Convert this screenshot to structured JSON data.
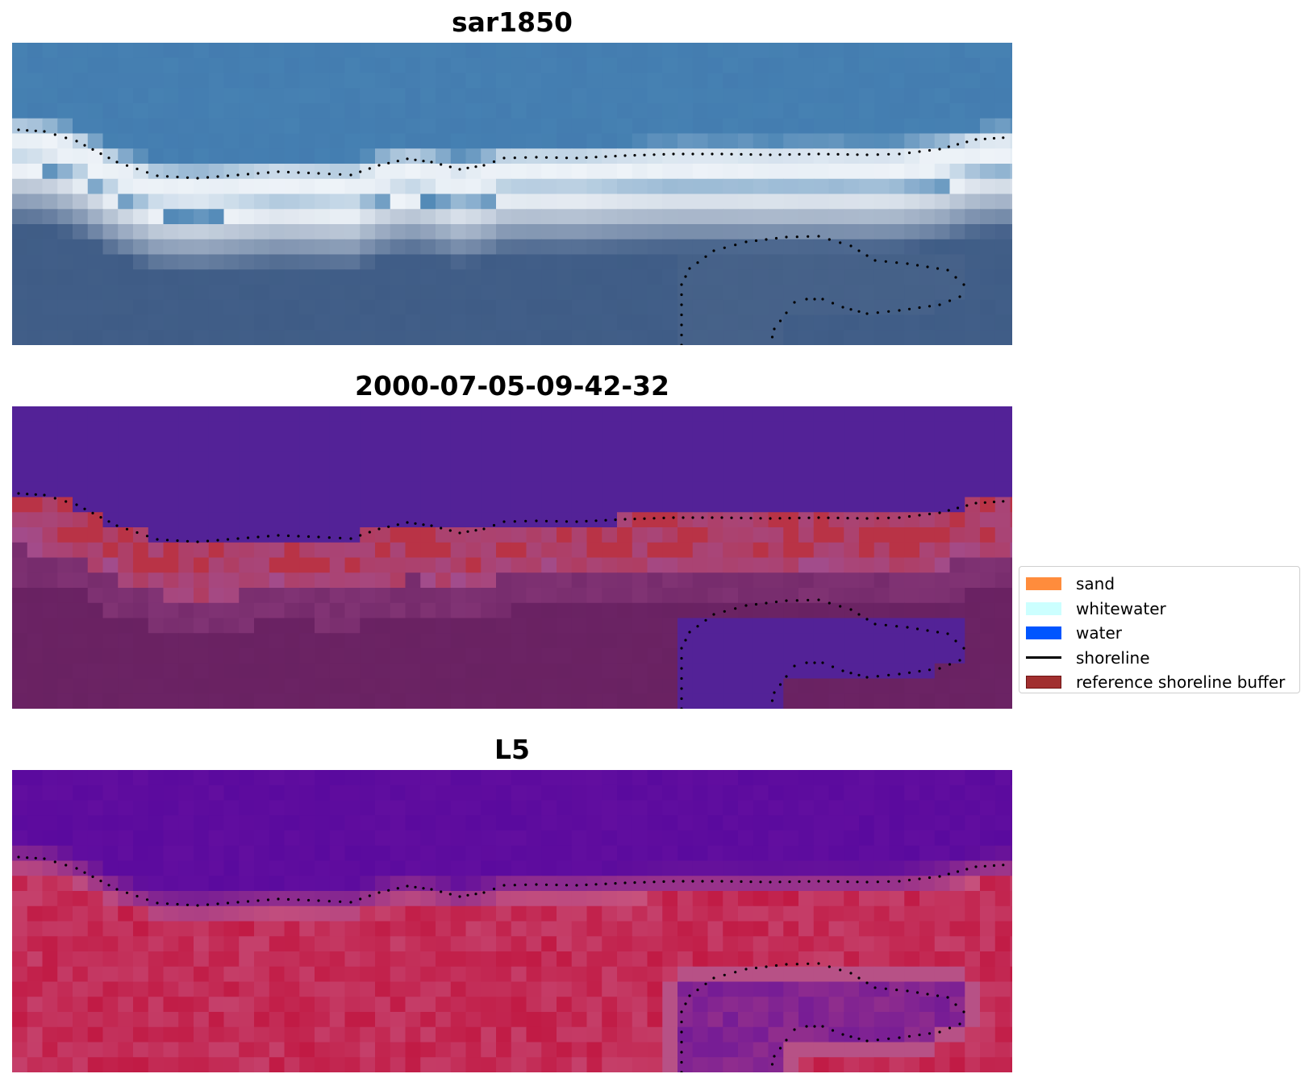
{
  "panels": [
    {
      "title": "sar1850",
      "image": "rgb-composite"
    },
    {
      "title": "2000-07-05-09-42-32",
      "image": "classified-overlay"
    },
    {
      "title": "L5",
      "image": "water-index"
    }
  ],
  "legend": {
    "items": [
      {
        "label": "sand",
        "color": "#ff8c3c",
        "kind": "patch"
      },
      {
        "label": "whitewater",
        "color": "#ccffff",
        "kind": "patch"
      },
      {
        "label": "water",
        "color": "#0055ff",
        "kind": "patch"
      },
      {
        "label": "shoreline",
        "color": "#000000",
        "kind": "line"
      },
      {
        "label": "reference shoreline buffer",
        "color": "#a12f2f",
        "kind": "patch"
      }
    ]
  },
  "colors": {
    "rgb_water_top": "#4681b2",
    "rgb_whitewater": "#eef3f8",
    "rgb_land": "#3f5c86",
    "class_water": "#532297",
    "class_land": "#6b2364",
    "class_buffer": "#b93346",
    "class_buffer_edge": "#a24c8c",
    "index_water": "#5a0a9e",
    "index_land": "#c11a44",
    "index_mid": "#c7517c"
  }
}
